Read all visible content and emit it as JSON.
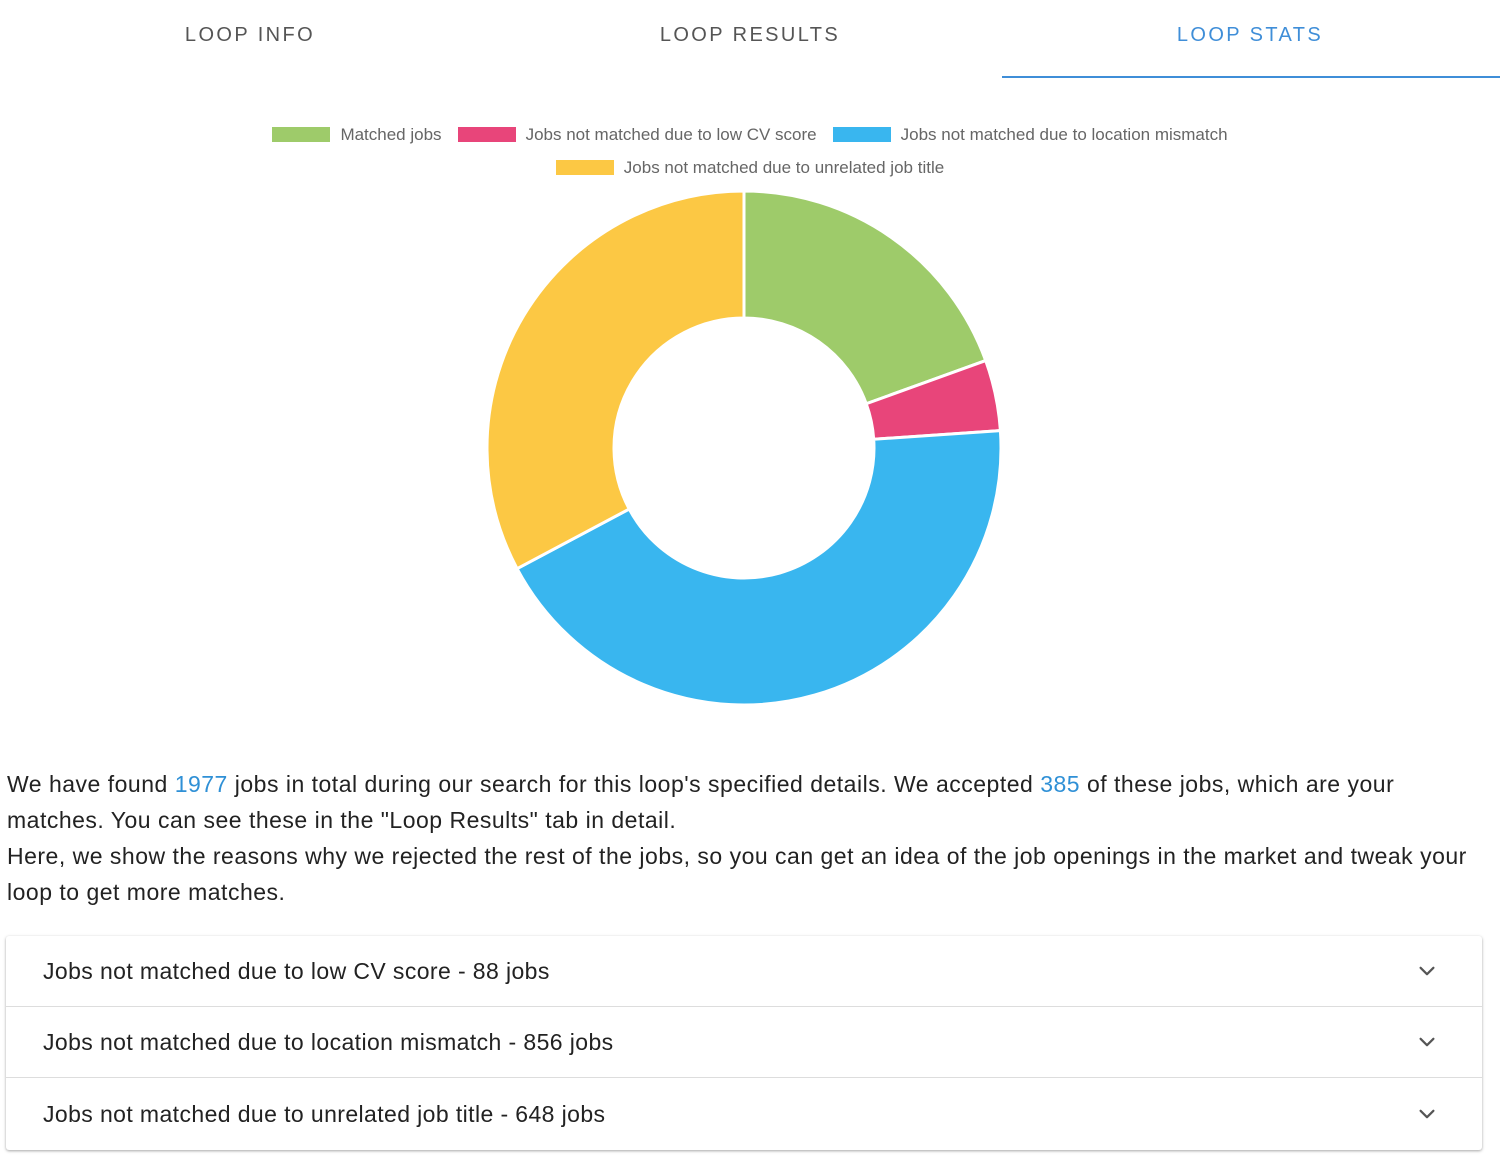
{
  "tabs": [
    {
      "label": "LOOP INFO",
      "active": false
    },
    {
      "label": "LOOP RESULTS",
      "active": false
    },
    {
      "label": "LOOP STATS",
      "active": true
    }
  ],
  "colors": {
    "accent": "#3f8ed8",
    "matched": "#9ecb6a",
    "low_cv": "#e8457a",
    "location": "#39b6ef",
    "title": "#fcc844"
  },
  "chart_data": {
    "type": "pie",
    "variant": "doughnut",
    "labels": [
      "Matched jobs",
      "Jobs not matched due to low CV score",
      "Jobs not matched due to location mismatch",
      "Jobs not matched due to unrelated job title"
    ],
    "values": [
      385,
      88,
      856,
      648
    ],
    "colors": [
      "#9ecb6a",
      "#e8457a",
      "#39b6ef",
      "#fcc844"
    ],
    "legend_position": "top"
  },
  "description": {
    "p1_a": "We have found ",
    "total": "1977",
    "p1_b": " jobs in total during our search for this loop's specified details. We accepted ",
    "accepted": "385",
    "p1_c": " of these jobs, which are your matches. You can see these in the \"Loop Results\" tab in detail.",
    "p2": "Here, we show the reasons why we rejected the rest of the jobs, so you can get an idea of the job openings in the market and tweak your loop to get more matches."
  },
  "accordion": [
    {
      "label": "Jobs not matched due to low CV score - 88 jobs",
      "icon": "chevron-down-icon"
    },
    {
      "label": "Jobs not matched due to location mismatch - 856 jobs",
      "icon": "chevron-down-icon"
    },
    {
      "label": "Jobs not matched due to unrelated job title - 648 jobs",
      "icon": "chevron-down-icon"
    }
  ]
}
